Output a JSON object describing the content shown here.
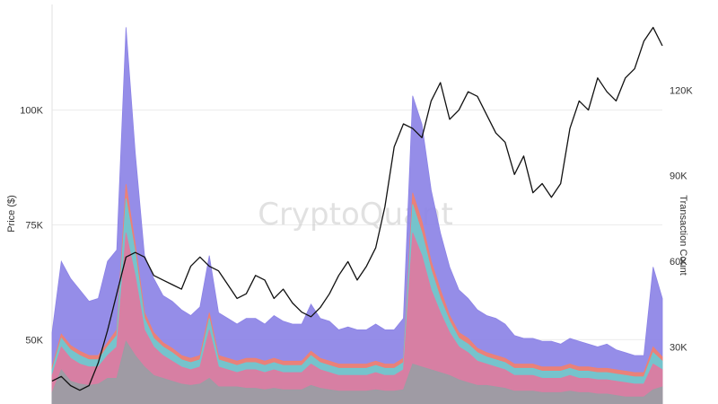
{
  "chart_data": {
    "type": "area",
    "title": "",
    "watermark": "CryptoQuant",
    "x": [
      0,
      1,
      2,
      3,
      4,
      5,
      6,
      7,
      8,
      9,
      10,
      11,
      12,
      13,
      14,
      15,
      16,
      17,
      18,
      19,
      20,
      21,
      22,
      23,
      24,
      25,
      26,
      27,
      28,
      29,
      30,
      31,
      32,
      33,
      34,
      35,
      36,
      37,
      38,
      39,
      40,
      41,
      42,
      43,
      44,
      45,
      46,
      47,
      48,
      49,
      50,
      51,
      52,
      53,
      54,
      55,
      56,
      57,
      58,
      59,
      60,
      61,
      62,
      63,
      64,
      65,
      66
    ],
    "y_left": {
      "label": "Price ($)",
      "ticks": [
        {
          "value": 50000,
          "label": "50K"
        },
        {
          "value": 75000,
          "label": "75K"
        },
        {
          "value": 100000,
          "label": "100K"
        }
      ],
      "range": [
        36000,
        123000
      ]
    },
    "y_right": {
      "label": "Transaction Count",
      "ticks": [
        {
          "value": 30000,
          "label": "30K"
        },
        {
          "value": 60000,
          "label": "60K"
        },
        {
          "value": 90000,
          "label": "90K"
        },
        {
          "value": 120000,
          "label": "120K"
        }
      ],
      "range": [
        10000,
        150000
      ]
    },
    "grid": true,
    "series": [
      {
        "axis": "right",
        "color": "#9a9da4",
        "values": [
          14000,
          22000,
          18000,
          17000,
          16500,
          17000,
          19000,
          19000,
          32000,
          27000,
          23000,
          20000,
          19000,
          18000,
          17000,
          16500,
          17000,
          19000,
          16000,
          16000,
          16000,
          15500,
          15500,
          15000,
          15500,
          15000,
          15000,
          15000,
          16500,
          15500,
          15000,
          14500,
          14500,
          14500,
          14500,
          15000,
          14500,
          14500,
          15000,
          24000,
          23000,
          22000,
          21000,
          20000,
          18500,
          17500,
          16500,
          16500,
          16000,
          15500,
          14500,
          14500,
          14500,
          14000,
          14000,
          14000,
          14500,
          14000,
          14000,
          13500,
          13500,
          13000,
          12500,
          12500,
          12500,
          15000,
          16000
        ]
      },
      {
        "axis": "right",
        "color": "#e07aa0",
        "values": [
          20000,
          30000,
          26000,
          24000,
          23000,
          23000,
          27000,
          30000,
          70000,
          55000,
          36000,
          30000,
          27000,
          25000,
          23000,
          22000,
          23000,
          36000,
          23000,
          22000,
          21000,
          22000,
          22000,
          21000,
          22000,
          21000,
          21000,
          21000,
          24000,
          22000,
          21000,
          20000,
          20000,
          20000,
          20000,
          21000,
          20000,
          20000,
          22000,
          70000,
          62000,
          50000,
          42000,
          35000,
          30000,
          28000,
          25000,
          24000,
          23000,
          22000,
          20000,
          20000,
          20000,
          19000,
          19000,
          19000,
          20000,
          19000,
          19000,
          18500,
          18500,
          18000,
          17500,
          17000,
          17000,
          24000,
          22000
        ]
      },
      {
        "axis": "right",
        "color": "#6bc9d3",
        "values": [
          22000,
          33000,
          29000,
          27000,
          25500,
          25500,
          30000,
          34000,
          82000,
          63000,
          40000,
          33000,
          30000,
          28000,
          25500,
          24500,
          25500,
          40000,
          25500,
          24500,
          23500,
          24500,
          24500,
          23500,
          24500,
          23500,
          23500,
          23500,
          27000,
          24500,
          23500,
          22500,
          22500,
          22500,
          22500,
          23500,
          22500,
          22500,
          24500,
          80000,
          70000,
          57000,
          47000,
          39000,
          33000,
          31000,
          28000,
          26500,
          25500,
          24500,
          22500,
          22500,
          22500,
          21500,
          21500,
          21500,
          22500,
          21500,
          21500,
          21000,
          21000,
          20500,
          20000,
          19500,
          19500,
          28000,
          25000
        ]
      },
      {
        "axis": "right",
        "color": "#f08070",
        "values": [
          23000,
          34500,
          30500,
          28500,
          27000,
          27000,
          31500,
          36000,
          87000,
          66000,
          42000,
          35000,
          31500,
          29500,
          27000,
          26000,
          27000,
          42000,
          27000,
          26000,
          25000,
          26000,
          26000,
          25000,
          26000,
          25000,
          25000,
          25000,
          28500,
          26000,
          25000,
          24000,
          24000,
          24000,
          24000,
          25000,
          24000,
          24000,
          26000,
          84000,
          74000,
          60000,
          50000,
          41000,
          35000,
          33000,
          29500,
          28000,
          27000,
          26000,
          24000,
          24000,
          24000,
          23000,
          23000,
          23000,
          24000,
          23000,
          23000,
          22500,
          22500,
          22000,
          21500,
          21000,
          21000,
          30000,
          26500
        ]
      },
      {
        "axis": "right",
        "color": "#8c83e6",
        "values": [
          35000,
          60000,
          54000,
          50000,
          46000,
          47000,
          60000,
          64000,
          142000,
          98000,
          62000,
          54000,
          48000,
          46000,
          43000,
          41000,
          44000,
          62000,
          42000,
          40000,
          38000,
          40000,
          40000,
          38000,
          41000,
          39000,
          38000,
          38000,
          45000,
          40000,
          39000,
          36000,
          37000,
          36000,
          36000,
          38000,
          36000,
          36000,
          40000,
          118000,
          108000,
          85000,
          70000,
          58000,
          50000,
          47000,
          43000,
          41000,
          40000,
          38000,
          34000,
          33000,
          33000,
          32000,
          32000,
          31000,
          33000,
          32000,
          31000,
          30000,
          31000,
          29000,
          28000,
          27000,
          27000,
          58000,
          47000
        ]
      },
      {
        "axis": "left",
        "color": "#111111",
        "style": "line",
        "values": [
          41000,
          42000,
          40000,
          39000,
          40000,
          45000,
          52000,
          60000,
          68000,
          69000,
          68000,
          64000,
          63000,
          62000,
          61000,
          66000,
          68000,
          66000,
          65000,
          62000,
          59000,
          60000,
          64000,
          63000,
          59000,
          61000,
          58000,
          56000,
          55000,
          57000,
          60000,
          64000,
          67000,
          63000,
          66000,
          70000,
          79000,
          92000,
          97000,
          96000,
          94000,
          102000,
          106000,
          98000,
          100000,
          104000,
          103000,
          99000,
          95000,
          93000,
          86000,
          90000,
          82000,
          84000,
          81000,
          84000,
          96000,
          102000,
          100000,
          107000,
          104000,
          102000,
          107000,
          109000,
          115000,
          118000,
          114000
        ]
      }
    ]
  }
}
